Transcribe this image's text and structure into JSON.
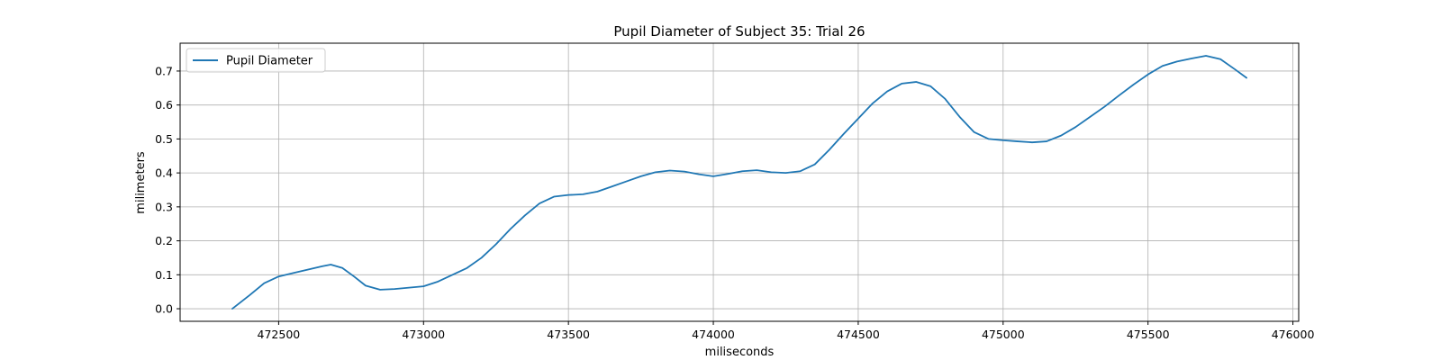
{
  "chart_data": {
    "type": "line",
    "title": "Pupil Diameter of Subject 35: Trial 26",
    "xlabel": "miliseconds",
    "ylabel": "milimeters",
    "xlim": [
      472160,
      476020
    ],
    "ylim": [
      -0.037,
      0.782
    ],
    "xticks": [
      472500,
      473000,
      473500,
      474000,
      474500,
      475000,
      475500,
      476000
    ],
    "xtick_labels": [
      "472500",
      "473000",
      "473500",
      "474000",
      "474500",
      "475000",
      "475500",
      "476000"
    ],
    "yticks": [
      0.0,
      0.1,
      0.2,
      0.3,
      0.4,
      0.5,
      0.6,
      0.7
    ],
    "ytick_labels": [
      "0.0",
      "0.1",
      "0.2",
      "0.3",
      "0.4",
      "0.5",
      "0.6",
      "0.7"
    ],
    "grid": true,
    "legend": {
      "position": "top-left",
      "entries": [
        "Pupil Diameter"
      ]
    },
    "series": [
      {
        "name": "Pupil Diameter",
        "color": "#1f77b4",
        "x": [
          472340,
          472400,
          472450,
          472500,
          472550,
          472600,
          472650,
          472680,
          472720,
          472760,
          472800,
          472850,
          472900,
          472950,
          473000,
          473050,
          473100,
          473150,
          473200,
          473250,
          473300,
          473350,
          473400,
          473450,
          473500,
          473550,
          473600,
          473650,
          473700,
          473750,
          473800,
          473850,
          473900,
          473950,
          474000,
          474050,
          474100,
          474150,
          474200,
          474250,
          474300,
          474350,
          474400,
          474450,
          474500,
          474550,
          474600,
          474650,
          474700,
          474750,
          474800,
          474850,
          474900,
          474950,
          475000,
          475050,
          475100,
          475150,
          475200,
          475250,
          475300,
          475350,
          475400,
          475450,
          475500,
          475550,
          475600,
          475650,
          475700,
          475750,
          475800,
          475840
        ],
        "y": [
          0.0,
          0.04,
          0.075,
          0.095,
          0.105,
          0.115,
          0.125,
          0.13,
          0.12,
          0.095,
          0.068,
          0.056,
          0.058,
          0.062,
          0.066,
          0.08,
          0.1,
          0.12,
          0.15,
          0.19,
          0.235,
          0.275,
          0.31,
          0.33,
          0.335,
          0.337,
          0.345,
          0.36,
          0.375,
          0.39,
          0.402,
          0.407,
          0.404,
          0.396,
          0.39,
          0.397,
          0.405,
          0.408,
          0.402,
          0.4,
          0.405,
          0.425,
          0.468,
          0.515,
          0.56,
          0.605,
          0.64,
          0.663,
          0.668,
          0.655,
          0.618,
          0.565,
          0.52,
          0.5,
          0.496,
          0.493,
          0.49,
          0.493,
          0.51,
          0.535,
          0.565,
          0.595,
          0.628,
          0.66,
          0.69,
          0.715,
          0.728,
          0.737,
          0.745,
          0.735,
          0.705,
          0.68
        ]
      }
    ]
  }
}
